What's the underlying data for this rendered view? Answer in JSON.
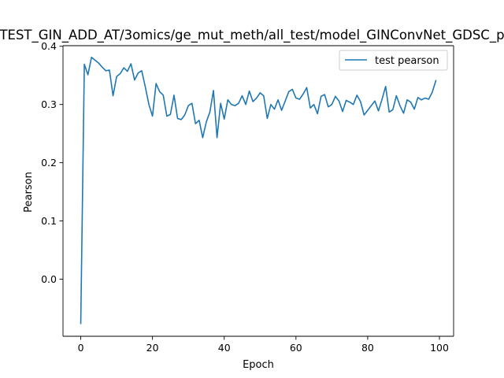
{
  "chart_data": {
    "type": "line",
    "title": "TEST_GIN_ADD_AT/3omics/ge_mut_meth/all_test/model_GINConvNet_GDSC_p",
    "xlabel": "Epoch",
    "ylabel": "Pearson",
    "xlim": [
      -4.95,
      103.95
    ],
    "ylim": [
      -0.098,
      0.401
    ],
    "xticks": [
      0,
      20,
      40,
      60,
      80,
      100
    ],
    "yticks": [
      0.0,
      0.1,
      0.2,
      0.3,
      0.4
    ],
    "ytick_labels": [
      "0.0",
      "0.1",
      "0.2",
      "0.3",
      "0.4"
    ],
    "legend": {
      "position": "upper right"
    },
    "series": [
      {
        "name": "test pearson",
        "color": "#1f77b4",
        "x": [
          0,
          1,
          2,
          3,
          4,
          5,
          6,
          7,
          8,
          9,
          10,
          11,
          12,
          13,
          14,
          15,
          16,
          17,
          18,
          19,
          20,
          21,
          22,
          23,
          24,
          25,
          26,
          27,
          28,
          29,
          30,
          31,
          32,
          33,
          34,
          35,
          36,
          37,
          38,
          39,
          40,
          41,
          42,
          43,
          44,
          45,
          46,
          47,
          48,
          49,
          50,
          51,
          52,
          53,
          54,
          55,
          56,
          57,
          58,
          59,
          60,
          61,
          62,
          63,
          64,
          65,
          66,
          67,
          68,
          69,
          70,
          71,
          72,
          73,
          74,
          75,
          76,
          77,
          78,
          79,
          80,
          81,
          82,
          83,
          84,
          85,
          86,
          87,
          88,
          89,
          90,
          91,
          92,
          93,
          94,
          95,
          96,
          97,
          98,
          99
        ],
        "y": [
          -0.076,
          0.369,
          0.351,
          0.381,
          0.376,
          0.371,
          0.364,
          0.358,
          0.359,
          0.315,
          0.348,
          0.353,
          0.363,
          0.357,
          0.37,
          0.342,
          0.354,
          0.358,
          0.33,
          0.3,
          0.28,
          0.336,
          0.322,
          0.316,
          0.28,
          0.283,
          0.316,
          0.276,
          0.274,
          0.282,
          0.298,
          0.302,
          0.267,
          0.273,
          0.243,
          0.27,
          0.287,
          0.324,
          0.243,
          0.302,
          0.275,
          0.308,
          0.3,
          0.298,
          0.302,
          0.315,
          0.3,
          0.323,
          0.305,
          0.311,
          0.32,
          0.315,
          0.276,
          0.3,
          0.292,
          0.308,
          0.29,
          0.306,
          0.322,
          0.326,
          0.311,
          0.309,
          0.318,
          0.329,
          0.294,
          0.3,
          0.284,
          0.314,
          0.317,
          0.296,
          0.3,
          0.314,
          0.306,
          0.288,
          0.307,
          0.304,
          0.3,
          0.316,
          0.305,
          0.282,
          0.29,
          0.298,
          0.306,
          0.289,
          0.309,
          0.331,
          0.287,
          0.291,
          0.315,
          0.298,
          0.285,
          0.308,
          0.304,
          0.292,
          0.312,
          0.308,
          0.311,
          0.309,
          0.321,
          0.341
        ]
      }
    ]
  }
}
